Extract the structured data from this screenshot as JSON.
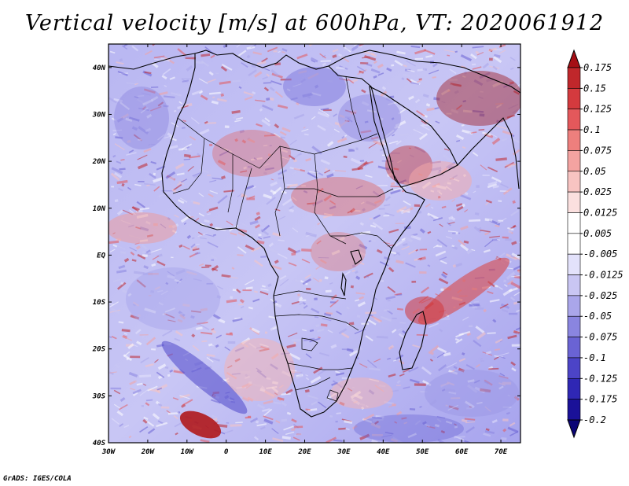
{
  "title": "Vertical velocity [m/s] at 600hPa, VT: 2020061912",
  "credit": "GrADS: IGES/COLA",
  "map": {
    "lon_labels": [
      "30W",
      "20W",
      "10W",
      "0",
      "10E",
      "20E",
      "30E",
      "40E",
      "50E",
      "60E",
      "70E"
    ],
    "lat_labels": [
      "40N",
      "30N",
      "20N",
      "10N",
      "EQ",
      "10S",
      "20S",
      "30S",
      "40S"
    ],
    "lon_range": [
      -30,
      75
    ],
    "lat_range": [
      -40,
      45
    ]
  },
  "colorbar": {
    "levels": [
      "0.175",
      "0.15",
      "0.125",
      "0.1",
      "0.075",
      "0.05",
      "0.025",
      "0.0125",
      "0.005",
      "-0.005",
      "-0.0125",
      "-0.025",
      "-0.05",
      "-0.075",
      "-0.1",
      "-0.125",
      "-0.175",
      "-0.2"
    ],
    "colors": [
      "#a50f15",
      "#c0272b",
      "#d43a3e",
      "#e4585b",
      "#ee7f7d",
      "#f4a3a1",
      "#f8c4c2",
      "#fbe0df",
      "#ffffff",
      "#ffffff",
      "#e3e2fb",
      "#c9c6f3",
      "#aaa6ea",
      "#8a85e0",
      "#6a63d4",
      "#4c44c7",
      "#2f27b4",
      "#1a1198",
      "#0b0575"
    ]
  },
  "colors": {
    "frame": "#000000",
    "coast": "#000000",
    "background": "#ffffff"
  }
}
